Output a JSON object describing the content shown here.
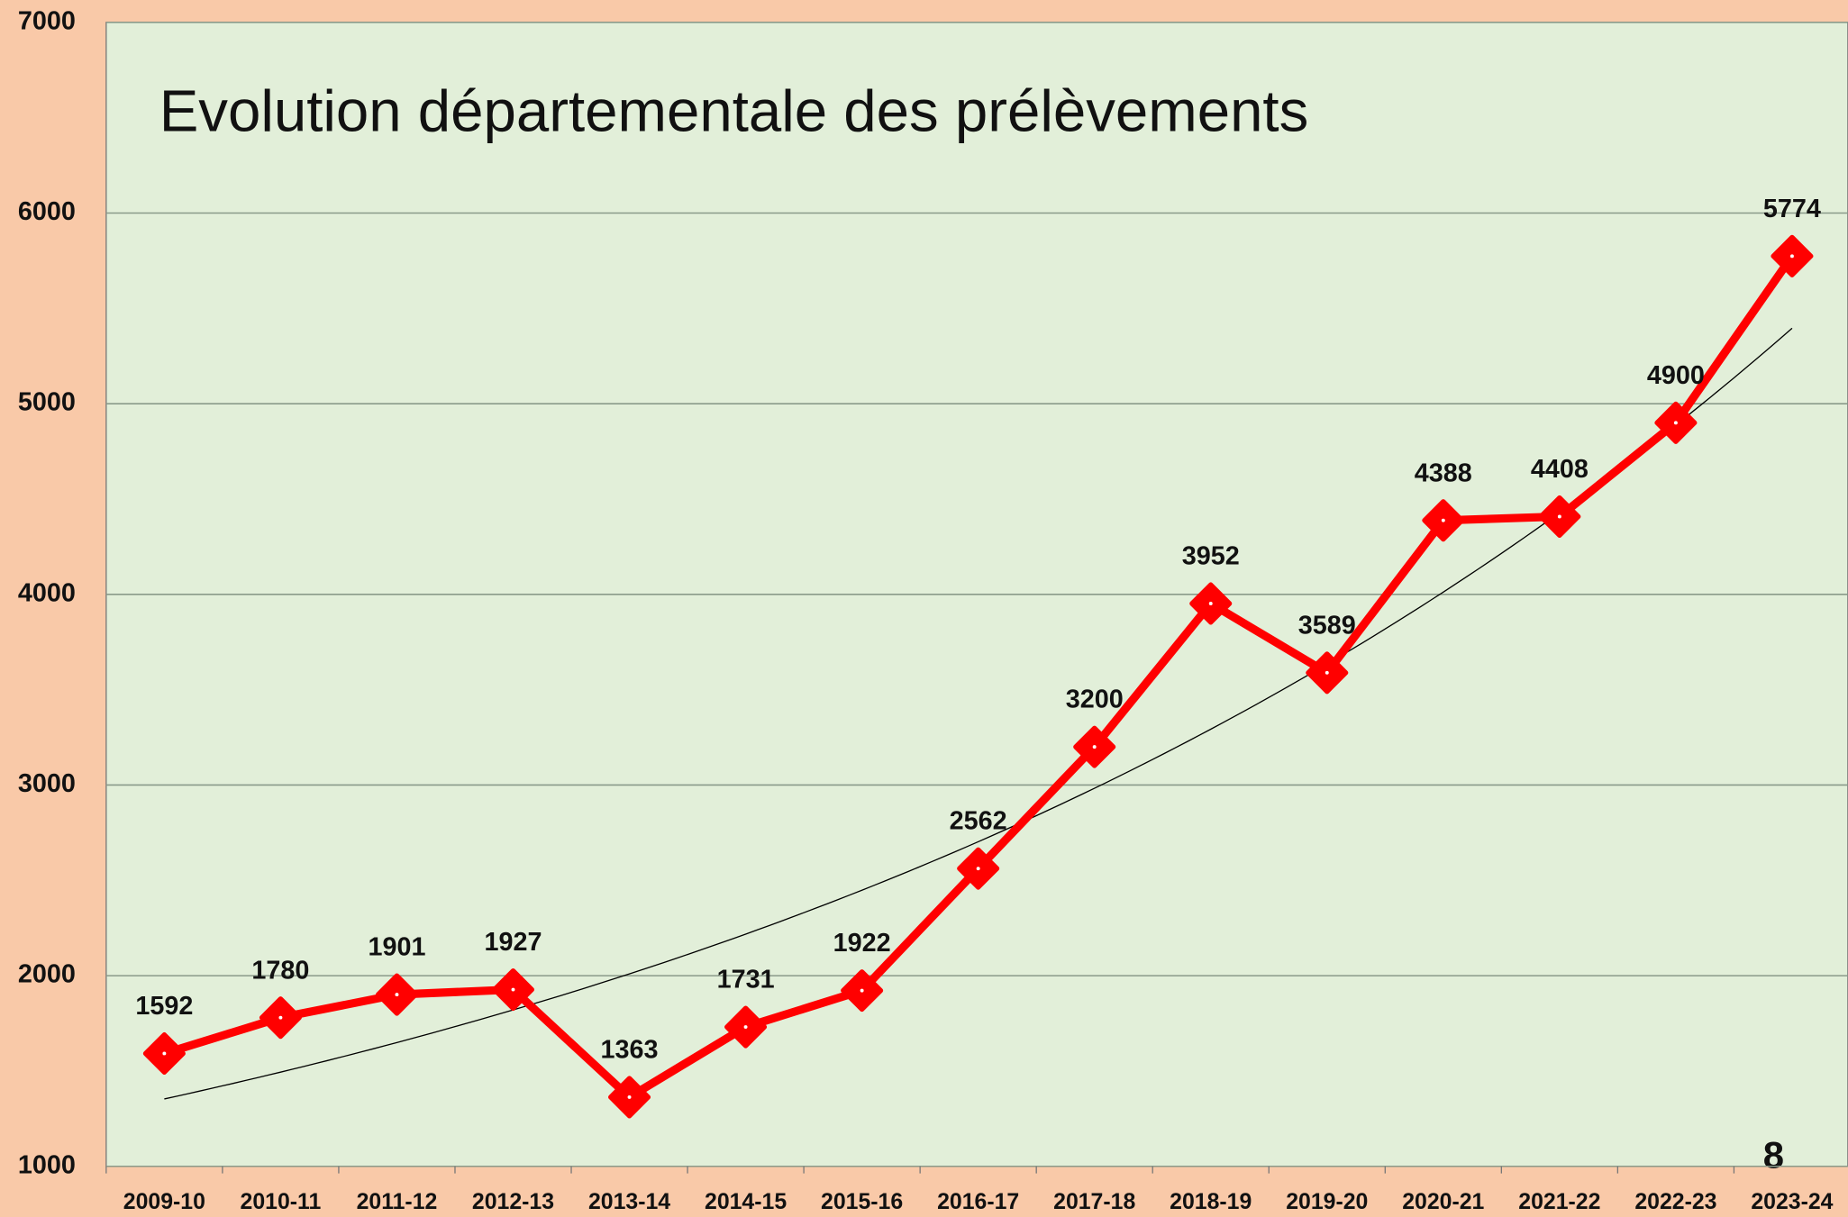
{
  "chart_data": {
    "type": "line",
    "title": "Evolution départementale des prélèvements",
    "categories": [
      "2009-10",
      "2010-11",
      "2011-12",
      "2012-13",
      "2013-14",
      "2014-15",
      "2015-16",
      "2016-17",
      "2017-18",
      "2018-19",
      "2019-20",
      "2020-21",
      "2021-22",
      "2022-23",
      "2023-24"
    ],
    "series": [
      {
        "color": "#ff0000",
        "values": [
          1592,
          1780,
          1901,
          1927,
          1363,
          1731,
          1922,
          2562,
          3200,
          3952,
          3589,
          4388,
          4408,
          4900,
          5774
        ]
      }
    ],
    "ylim": [
      1000,
      7000
    ],
    "yticks": [
      1000,
      2000,
      3000,
      4000,
      5000,
      6000,
      7000
    ],
    "grid": true,
    "trendline": "exponential",
    "trendline_color": "#000000",
    "annotations": [
      "8"
    ]
  }
}
